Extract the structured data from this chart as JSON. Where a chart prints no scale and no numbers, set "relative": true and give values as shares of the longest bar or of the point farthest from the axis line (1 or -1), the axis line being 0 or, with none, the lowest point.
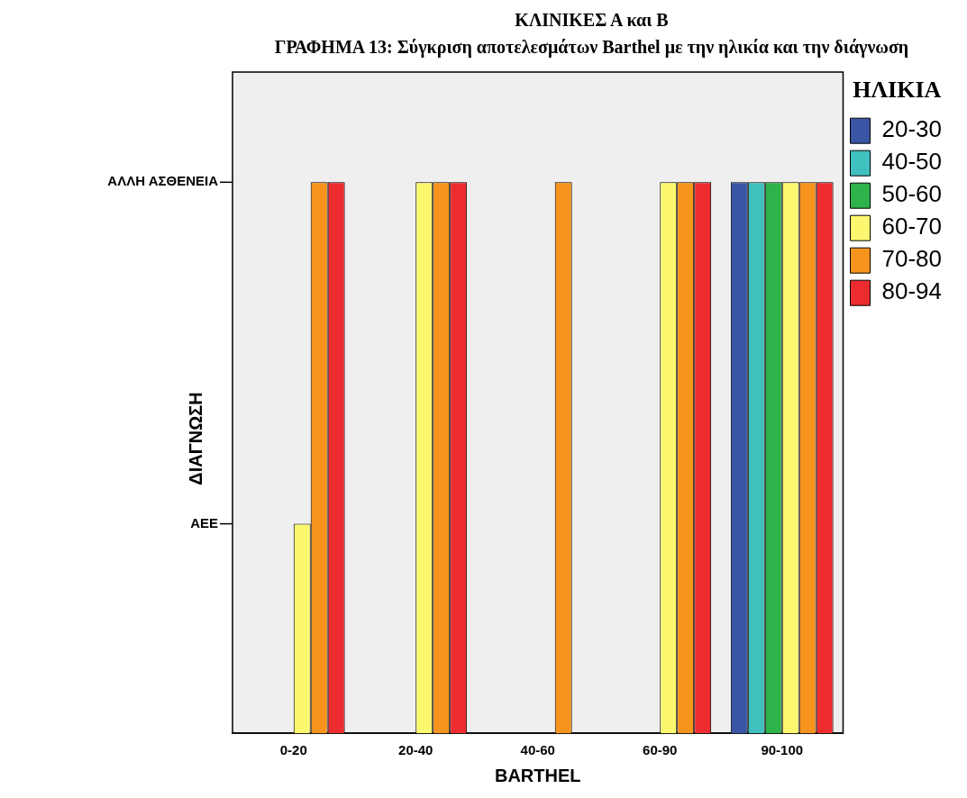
{
  "chart_data": {
    "type": "bar",
    "title": "ΚΛΙΝΙΚΕΣ Α και Β",
    "subtitle": "ΓΡΑΦΗΜΑ 13: Σύγκριση αποτελεσμάτων Barthel με την ηλικία και την διάγνωση",
    "xlabel": "BARTHEL",
    "ylabel": "ΔΙΑΓΝΩΣΗ",
    "legend_title": "ΗΛΙΚΙΑ",
    "legend": "right",
    "grid": false,
    "relative": true,
    "categories": [
      "0-20",
      "20-40",
      "40-60",
      "60-90",
      "90-100"
    ],
    "annotations": [
      "ΑΕΕ",
      "ΑΛΛΗ ΑΣΘΕΝΕΙΑ"
    ],
    "series": [
      {
        "name": "20-30",
        "color": "#3a55a4",
        "values": [
          null,
          null,
          null,
          null,
          1
        ]
      },
      {
        "name": "40-50",
        "color": "#41c0c0",
        "values": [
          null,
          null,
          null,
          null,
          1
        ]
      },
      {
        "name": "50-60",
        "color": "#2db34a",
        "values": [
          null,
          null,
          null,
          null,
          1
        ]
      },
      {
        "name": "60-70",
        "color": "#fbf870",
        "values": [
          0.38,
          1,
          null,
          1,
          1
        ]
      },
      {
        "name": "70-80",
        "color": "#f7941d",
        "values": [
          1,
          1,
          1,
          1,
          1
        ]
      },
      {
        "name": "80-94",
        "color": "#ed2c2f",
        "values": [
          1,
          1,
          null,
          1,
          1
        ]
      }
    ]
  }
}
